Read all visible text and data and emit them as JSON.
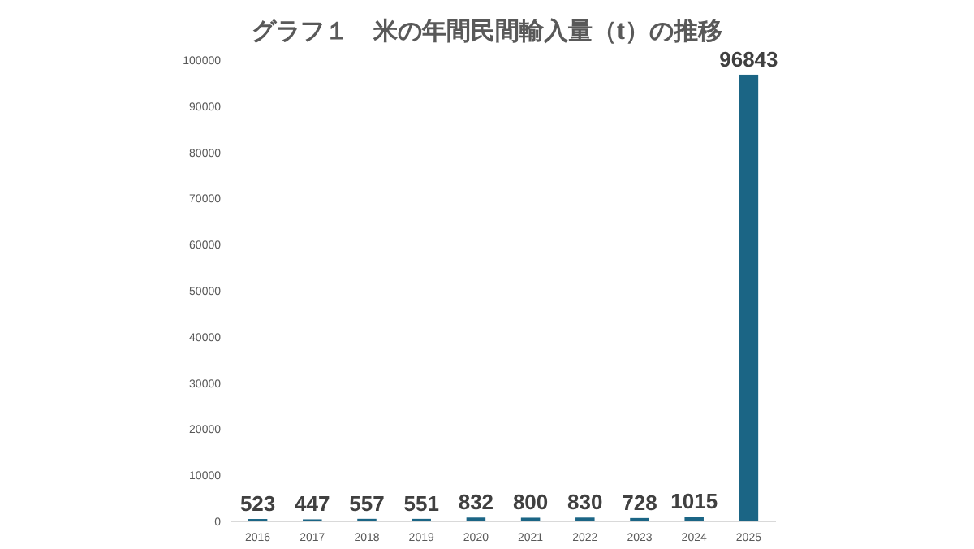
{
  "chart_data": {
    "type": "bar",
    "title": "グラフ１　米の年間民間輸入量（t）の推移",
    "categories": [
      "2016",
      "2017",
      "2018",
      "2019",
      "2020",
      "2021",
      "2022",
      "2023",
      "2024",
      "2025"
    ],
    "values": [
      523,
      447,
      557,
      551,
      832,
      800,
      830,
      728,
      1015,
      96843
    ],
    "color": "#1b6585",
    "ylim": [
      0,
      100000
    ],
    "yticks": [
      0,
      10000,
      20000,
      30000,
      40000,
      50000,
      60000,
      70000,
      80000,
      90000,
      100000
    ],
    "data_labels": true
  }
}
